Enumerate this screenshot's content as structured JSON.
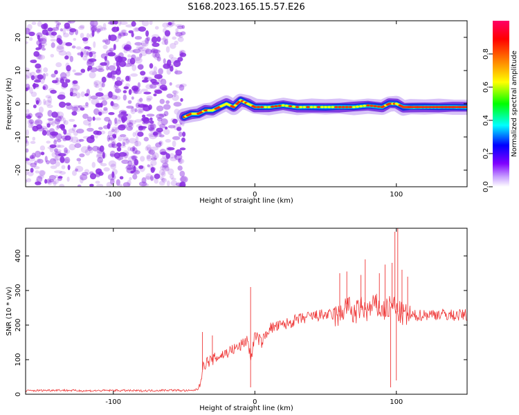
{
  "title": "S168.2023.165.15.57.E26",
  "chart_data": [
    {
      "type": "heatmap",
      "title": "S168.2023.165.15.57.E26",
      "xlabel": "Height of straight line (km)",
      "ylabel": "Frequency (Hz)",
      "xlim": [
        -162,
        150
      ],
      "ylim": [
        -25,
        25
      ],
      "xticks": [
        -100,
        0,
        100
      ],
      "yticks": [
        -20,
        -10,
        0,
        10,
        20
      ],
      "colorbar": {
        "label": "Normalized spectral amplitude",
        "range": [
          0.0,
          1.0
        ],
        "ticks": [
          0.0,
          0.2,
          0.4,
          0.6,
          0.8
        ],
        "tick_labels": [
          "0.0",
          "0.2",
          "0.4",
          "0.6",
          "0.8"
        ],
        "colormap": [
          "#ffffff",
          "#8000ff",
          "#0000ff",
          "#00ffff",
          "#00ff00",
          "#ffff00",
          "#ff8000",
          "#ff0000",
          "#ff0066"
        ]
      },
      "noise_region": {
        "x_range": [
          -162,
          -50
        ],
        "color": "#8a2be2"
      },
      "ridge": {
        "x": [
          -50,
          -45,
          -40,
          -35,
          -30,
          -25,
          -20,
          -15,
          -10,
          -5,
          0,
          10,
          20,
          30,
          40,
          50,
          60,
          70,
          80,
          90,
          95,
          100,
          105,
          110,
          120,
          130,
          140,
          150
        ],
        "y": [
          -4,
          -3,
          -3,
          -2,
          -2,
          -1,
          0,
          -1,
          1,
          0,
          -1,
          -1,
          -0.5,
          -1,
          -1,
          -1,
          -1,
          -1,
          -0.5,
          -1,
          0,
          0,
          -1,
          -1,
          -1,
          -1,
          -1,
          -1
        ]
      },
      "grid": false
    },
    {
      "type": "line",
      "xlabel": "Height of straight line (km)",
      "ylabel": "SNR (10 * v/v)",
      "xlim": [
        -162,
        150
      ],
      "ylim": [
        0,
        480
      ],
      "xticks": [
        -100,
        0,
        100
      ],
      "yticks": [
        0,
        100,
        200,
        300,
        400
      ],
      "series": [
        {
          "color": "#ee3333",
          "x": [
            -162,
            -140,
            -120,
            -100,
            -80,
            -60,
            -45,
            -40,
            -37,
            -35,
            -30,
            -25,
            -20,
            -15,
            -10,
            -5,
            -3,
            0,
            5,
            10,
            20,
            30,
            40,
            50,
            60,
            65,
            70,
            75,
            80,
            85,
            90,
            95,
            98,
            100,
            105,
            110,
            120,
            130,
            140,
            150
          ],
          "y": [
            10,
            12,
            10,
            11,
            10,
            12,
            10,
            15,
            70,
            90,
            100,
            110,
            120,
            130,
            140,
            160,
            100,
            170,
            150,
            190,
            200,
            215,
            225,
            230,
            225,
            260,
            230,
            250,
            240,
            260,
            240,
            250,
            260,
            240,
            230,
            225,
            230,
            232,
            228,
            230
          ],
          "spikes": [
            {
              "x": -37,
              "y": 180
            },
            {
              "x": -30,
              "y": 170
            },
            {
              "x": -3,
              "y": 310
            },
            {
              "x": 60,
              "y": 350
            },
            {
              "x": 65,
              "y": 355
            },
            {
              "x": 75,
              "y": 345
            },
            {
              "x": 78,
              "y": 390
            },
            {
              "x": 88,
              "y": 350
            },
            {
              "x": 92,
              "y": 375
            },
            {
              "x": 97,
              "y": 380
            },
            {
              "x": 99,
              "y": 470
            },
            {
              "x": 101,
              "y": 480
            },
            {
              "x": 104,
              "y": 360
            },
            {
              "x": 108,
              "y": 340
            }
          ],
          "dips": [
            {
              "x": -3,
              "y": 20
            },
            {
              "x": 96,
              "y": 20
            },
            {
              "x": 100,
              "y": 40
            }
          ]
        }
      ],
      "grid": false
    }
  ]
}
